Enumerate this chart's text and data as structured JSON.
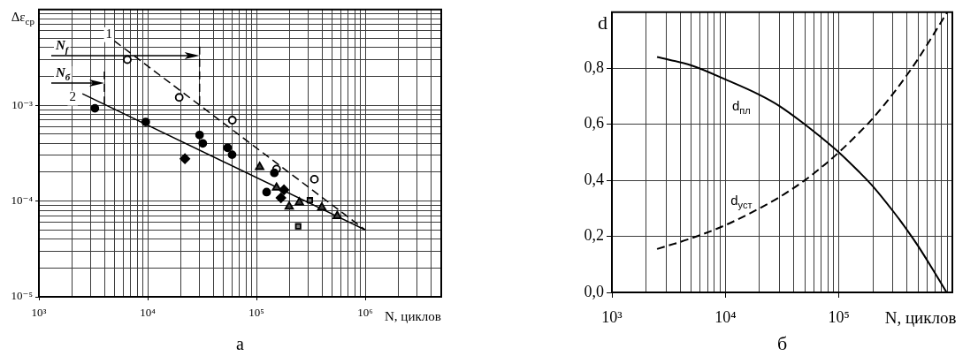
{
  "chart_data": [
    {
      "type": "scatter",
      "xlabel": "N, циклов",
      "ylabel": "Δε$_{ср}$",
      "log": "xy",
      "grid": true,
      "xlim": [
        1000,
        5000000
      ],
      "ylim": [
        1e-05,
        0.01
      ],
      "xticks": [
        {
          "value": 1000,
          "label": "10³"
        },
        {
          "value": 2000,
          "label": null
        },
        {
          "value": 3000,
          "label": null
        },
        {
          "value": 4000,
          "label": null
        },
        {
          "value": 5000,
          "label": null
        },
        {
          "value": 6000,
          "label": null
        },
        {
          "value": 7000,
          "label": null
        },
        {
          "value": 8000,
          "label": null
        },
        {
          "value": 9000,
          "label": null
        },
        {
          "value": 10000,
          "label": "10⁴"
        },
        {
          "value": 20000,
          "label": null
        },
        {
          "value": 30000,
          "label": null
        },
        {
          "value": 40000,
          "label": null
        },
        {
          "value": 50000,
          "label": null
        },
        {
          "value": 60000,
          "label": null
        },
        {
          "value": 70000,
          "label": null
        },
        {
          "value": 80000,
          "label": null
        },
        {
          "value": 90000,
          "label": null
        },
        {
          "value": 100000,
          "label": "10⁵"
        },
        {
          "value": 200000,
          "label": null
        },
        {
          "value": 300000,
          "label": null
        },
        {
          "value": 400000,
          "label": null
        },
        {
          "value": 500000,
          "label": null
        },
        {
          "value": 600000,
          "label": null
        },
        {
          "value": 700000,
          "label": null
        },
        {
          "value": 800000,
          "label": null
        },
        {
          "value": 900000,
          "label": null
        },
        {
          "value": 1000000,
          "label": "10⁶"
        },
        {
          "value": 2000000,
          "label": null
        },
        {
          "value": 3000000,
          "label": null
        },
        {
          "value": 4000000,
          "label": null
        },
        {
          "value": 5000000,
          "label": null
        }
      ],
      "yticks": [
        {
          "value": 1e-05,
          "label": "10⁻⁵"
        },
        {
          "value": 2e-05,
          "label": null
        },
        {
          "value": 3e-05,
          "label": null
        },
        {
          "value": 4e-05,
          "label": null
        },
        {
          "value": 5e-05,
          "label": null
        },
        {
          "value": 6e-05,
          "label": null
        },
        {
          "value": 7e-05,
          "label": null
        },
        {
          "value": 8e-05,
          "label": null
        },
        {
          "value": 9e-05,
          "label": null
        },
        {
          "value": 0.0001,
          "label": "10⁻⁴"
        },
        {
          "value": 0.0002,
          "label": null
        },
        {
          "value": 0.0003,
          "label": null
        },
        {
          "value": 0.0004,
          "label": null
        },
        {
          "value": 0.0005,
          "label": null
        },
        {
          "value": 0.0006,
          "label": null
        },
        {
          "value": 0.0007,
          "label": null
        },
        {
          "value": 0.0008,
          "label": null
        },
        {
          "value": 0.0009,
          "label": null
        },
        {
          "value": 0.001,
          "label": "10⁻³"
        },
        {
          "value": 0.002,
          "label": null
        },
        {
          "value": 0.003,
          "label": null
        },
        {
          "value": 0.004,
          "label": null
        },
        {
          "value": 0.005,
          "label": null
        },
        {
          "value": 0.006,
          "label": null
        },
        {
          "value": 0.007,
          "label": null
        },
        {
          "value": 0.008,
          "label": null
        },
        {
          "value": 0.009,
          "label": null
        },
        {
          "value": 0.01,
          "label": null
        }
      ],
      "series": [
        {
          "type": "line",
          "name": "1",
          "color": "#000000",
          "line_style": "dashed",
          "x": [
            4940,
            1000000
          ],
          "values": [
            0.0047,
            5e-05
          ]
        },
        {
          "type": "line",
          "name": "2",
          "color": "#000000",
          "line_style": "solid",
          "x": [
            2510,
            1000000
          ],
          "values": [
            0.00132,
            5e-05
          ]
        },
        {
          "type": "line",
          "color": "#000000",
          "line_style": "dashed",
          "x": [
            30000,
            30000
          ],
          "values": [
            0.0041,
            0.001
          ]
        },
        {
          "type": "line",
          "color": "#000000",
          "line_style": "dashed",
          "x": [
            4000,
            4000
          ],
          "values": [
            0.00225,
            0.00103
          ]
        },
        {
          "color": "#ffffff",
          "marker": "circle",
          "x": [
            6500,
            19500,
            60000,
            153000,
            341000
          ],
          "values": [
            0.003,
            0.00121,
            0.0007,
            0.000216,
            0.000169
          ]
        },
        {
          "color": "#000000",
          "marker": "circle",
          "x": [
            3270,
            9600,
            30000,
            32100,
            54300,
            59700,
            124000,
            146000
          ],
          "values": [
            0.00093,
            0.00067,
            0.00049,
            0.0004,
            0.00036,
            0.000305,
            0.000124,
            0.000197
          ]
        },
        {
          "color": "#000000",
          "marker": "diamond",
          "x": [
            22000,
            168000,
            179000
          ],
          "values": [
            0.000277,
            0.000108,
            0.000131
          ]
        },
        {
          "color": "#404040",
          "marker": "triangle",
          "x": [
            107000,
            153000,
            200000,
            248000,
            399000,
            553000
          ],
          "values": [
            0.000227,
            0.000138,
            8.75e-05,
            9.7e-05,
            8.57e-05,
            6.98e-05
          ]
        },
        {
          "color": "#808080",
          "marker": "square",
          "x": [
            242000,
            310000
          ],
          "values": [
            5.45e-05,
            0.000102
          ]
        }
      ],
      "annotations": [
        "N$_{f}$",
        "N$_{б}$",
        "а"
      ]
    },
    {
      "type": "line",
      "xlabel": "N, циклов",
      "ylabel": "d",
      "log": "x",
      "grid": true,
      "xlim": [
        1000,
        1000000
      ],
      "ylim": [
        0,
        1
      ],
      "xticks": [
        {
          "value": 1000,
          "label": "10³"
        },
        {
          "value": 2000,
          "label": null
        },
        {
          "value": 3000,
          "label": null
        },
        {
          "value": 4000,
          "label": null
        },
        {
          "value": 5000,
          "label": null
        },
        {
          "value": 6000,
          "label": null
        },
        {
          "value": 7000,
          "label": null
        },
        {
          "value": 8000,
          "label": null
        },
        {
          "value": 9000,
          "label": null
        },
        {
          "value": 10000,
          "label": "10⁴"
        },
        {
          "value": 20000,
          "label": null
        },
        {
          "value": 30000,
          "label": null
        },
        {
          "value": 40000,
          "label": null
        },
        {
          "value": 50000,
          "label": null
        },
        {
          "value": 60000,
          "label": null
        },
        {
          "value": 70000,
          "label": null
        },
        {
          "value": 80000,
          "label": null
        },
        {
          "value": 90000,
          "label": null
        },
        {
          "value": 100000,
          "label": "10⁵"
        },
        {
          "value": 200000,
          "label": null
        },
        {
          "value": 300000,
          "label": null
        },
        {
          "value": 400000,
          "label": null
        },
        {
          "value": 500000,
          "label": null
        },
        {
          "value": 600000,
          "label": null
        },
        {
          "value": 700000,
          "label": null
        },
        {
          "value": 800000,
          "label": null
        },
        {
          "value": 900000,
          "label": null
        }
      ],
      "yticks": [
        {
          "value": 0,
          "label": "0,0"
        },
        {
          "value": 0.2,
          "label": "0,2"
        },
        {
          "value": 0.4,
          "label": "0,4"
        },
        {
          "value": 0.6,
          "label": "0,6"
        },
        {
          "value": 0.8,
          "label": "0,8"
        }
      ],
      "series": [
        {
          "name": "d$_{пл}$",
          "color": "#000000",
          "line_style": "solid",
          "x": [
            2500,
            5000,
            10000,
            20000,
            30000,
            50000,
            70000,
            100000,
            150000,
            200000,
            300000,
            400000,
            500000,
            700000,
            890000
          ],
          "values": [
            0.84,
            0.81,
            0.76,
            0.705,
            0.665,
            0.6,
            0.553,
            0.5,
            0.431,
            0.378,
            0.29,
            0.222,
            0.165,
            0.07,
            0.0
          ]
        },
        {
          "name": "d$_{уст}$",
          "color": "#000000",
          "line_style": "dashed",
          "x": [
            2500,
            5000,
            10000,
            20000,
            30000,
            50000,
            70000,
            100000,
            150000,
            200000,
            300000,
            400000,
            500000,
            700000,
            900000
          ],
          "values": [
            0.155,
            0.193,
            0.24,
            0.3,
            0.34,
            0.4,
            0.446,
            0.5,
            0.569,
            0.622,
            0.709,
            0.777,
            0.834,
            0.928,
            1.0
          ]
        }
      ],
      "annotations": [
        "б"
      ]
    }
  ]
}
